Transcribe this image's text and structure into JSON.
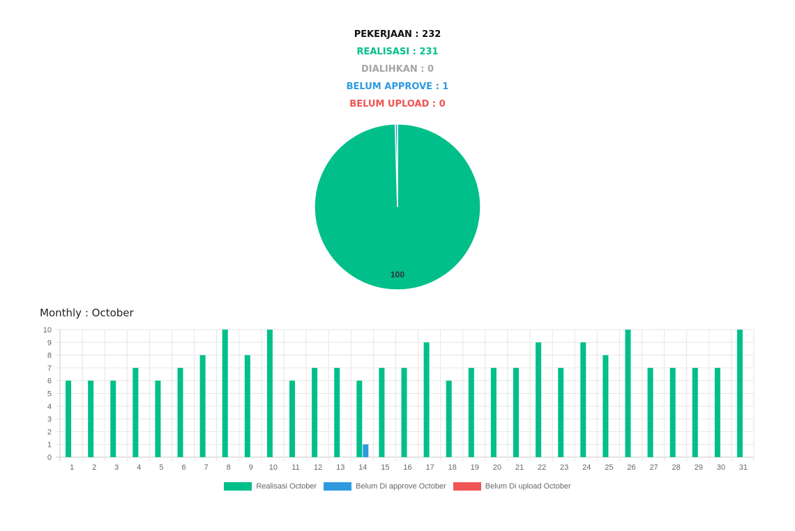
{
  "colors": {
    "realisasi": "#00BF8A",
    "dialihkan": "#A6A6A6",
    "belum_approve": "#2E9AE0",
    "belum_upload": "#F15454"
  },
  "stats": {
    "pekerjaan": "PEKERJAAN : 232",
    "realisasi": "REALISASI : 231",
    "dialihkan": "DIALIHKAN : 0",
    "belum_approve": "BELUM APPROVE : 1",
    "belum_upload": "BELUM UPLOAD : 0"
  },
  "monthly_title": "Monthly : October",
  "legend": [
    {
      "label": "Realisasi October",
      "color": "#00BF8A"
    },
    {
      "label": "Belum Di approve October",
      "color": "#2E9AE0"
    },
    {
      "label": "Belum Di upload October",
      "color": "#F15454"
    }
  ],
  "chart_data": [
    {
      "type": "pie",
      "slices": [
        {
          "name": "Realisasi",
          "value": 231,
          "color": "#00BF8A"
        },
        {
          "name": "Belum Approve",
          "value": 1,
          "color": "#2E9AE0"
        }
      ],
      "data_labels": [
        "100"
      ]
    },
    {
      "type": "bar",
      "title": "Monthly : October",
      "categories": [
        "1",
        "2",
        "3",
        "4",
        "5",
        "6",
        "7",
        "8",
        "9",
        "10",
        "11",
        "12",
        "13",
        "14",
        "15",
        "16",
        "17",
        "18",
        "19",
        "20",
        "21",
        "22",
        "23",
        "24",
        "25",
        "26",
        "27",
        "28",
        "29",
        "30",
        "31"
      ],
      "series": [
        {
          "name": "Realisasi October",
          "color": "#00BF8A",
          "values": [
            6,
            6,
            6,
            7,
            6,
            7,
            8,
            10,
            8,
            10,
            6,
            7,
            7,
            6,
            7,
            7,
            9,
            6,
            7,
            7,
            7,
            9,
            7,
            9,
            8,
            10,
            7,
            7,
            7,
            7,
            10
          ]
        },
        {
          "name": "Belum Di approve October",
          "color": "#2E9AE0",
          "values": [
            0,
            0,
            0,
            0,
            0,
            0,
            0,
            0,
            0,
            0,
            0,
            0,
            0,
            1,
            0,
            0,
            0,
            0,
            0,
            0,
            0,
            0,
            0,
            0,
            0,
            0,
            0,
            0,
            0,
            0,
            0
          ]
        },
        {
          "name": "Belum Di upload October",
          "color": "#F15454",
          "values": [
            0,
            0,
            0,
            0,
            0,
            0,
            0,
            0,
            0,
            0,
            0,
            0,
            0,
            0,
            0,
            0,
            0,
            0,
            0,
            0,
            0,
            0,
            0,
            0,
            0,
            0,
            0,
            0,
            0,
            0,
            0
          ]
        }
      ],
      "ylim": [
        0,
        10
      ],
      "yticks": [
        0,
        1,
        2,
        3,
        4,
        5,
        6,
        7,
        8,
        9,
        10
      ],
      "grid": true,
      "legend_position": "bottom"
    }
  ]
}
